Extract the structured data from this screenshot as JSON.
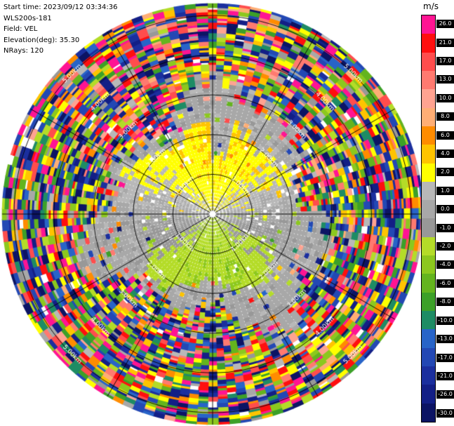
{
  "header": {
    "start_time": "Start time: 2023/09/12 03:34:36",
    "device": "WLS200s-181",
    "field": "Field: VEL",
    "elevation": "Elevation(deg): 35.30",
    "nrays": "NRays: 120"
  },
  "colorbar": {
    "unit": "m/s",
    "ticks": [
      26.0,
      21.0,
      17.0,
      13.0,
      10.0,
      8.0,
      6.0,
      4.0,
      2.0,
      1.0,
      0.0,
      -1.0,
      -2.0,
      -4.0,
      -6.0,
      -8.0,
      -10.0,
      -13.0,
      -17.0,
      -21.0,
      -26.0,
      -30.0
    ],
    "colors": [
      "#FF1493",
      "#FF0F0F",
      "#FF4D4D",
      "#FF7A70",
      "#FFA391",
      "#FFAE75",
      "#FF8C00",
      "#FFC400",
      "#FFFF00",
      "#B8B8B8",
      "#A8A8A8",
      "#989898",
      "#B4DC28",
      "#8CC81E",
      "#64B41E",
      "#3CA028",
      "#1E8C64",
      "#2864C8",
      "#2348B4",
      "#1B2F9E",
      "#131F86",
      "#0C1464"
    ]
  },
  "chart_data": {
    "type": "heatmap",
    "subtype": "doppler-lidar-ppi",
    "instrument": "WLS200s-181",
    "field": "VEL",
    "units": "m/s",
    "start_time": "2023/09/12 03:34:36",
    "elevation_deg": 35.3,
    "n_rays": 120,
    "max_range_km": 5.3,
    "gate_km": 0.053,
    "range_rings_km": [
      1,
      2,
      3,
      4,
      5
    ],
    "ring_labels": [
      "1.00km",
      "2.00km",
      "3.00km",
      "4.00km",
      "5.00km"
    ],
    "ring_label_azimuths_deg": [
      45,
      135,
      225,
      315
    ],
    "azimuth_spoke_step_deg": 30,
    "colormap": [
      {
        "value": 26.0,
        "color": "#FF1493"
      },
      {
        "value": 21.0,
        "color": "#FF0F0F"
      },
      {
        "value": 17.0,
        "color": "#FF4D4D"
      },
      {
        "value": 13.0,
        "color": "#FF7A70"
      },
      {
        "value": 10.0,
        "color": "#FFA391"
      },
      {
        "value": 8.0,
        "color": "#FFAE75"
      },
      {
        "value": 6.0,
        "color": "#FF8C00"
      },
      {
        "value": 4.0,
        "color": "#FFC400"
      },
      {
        "value": 2.0,
        "color": "#FFFF00"
      },
      {
        "value": 1.0,
        "color": "#B8B8B8"
      },
      {
        "value": 0.0,
        "color": "#A8A8A8"
      },
      {
        "value": -1.0,
        "color": "#989898"
      },
      {
        "value": -2.0,
        "color": "#B4DC28"
      },
      {
        "value": -4.0,
        "color": "#8CC81E"
      },
      {
        "value": -6.0,
        "color": "#64B41E"
      },
      {
        "value": -8.0,
        "color": "#3CA028"
      },
      {
        "value": -10.0,
        "color": "#1E8C64"
      },
      {
        "value": -13.0,
        "color": "#2864C8"
      },
      {
        "value": -17.0,
        "color": "#2348B4"
      },
      {
        "value": -21.0,
        "color": "#1B2F9E"
      },
      {
        "value": -26.0,
        "color": "#131F86"
      },
      {
        "value": -30.0,
        "color": "#0C1464"
      }
    ],
    "field_pattern": {
      "description": "Coherent radial-velocity dipole near the lidar: positive velocities (yellow/orange, about +2 to +5 m/s) in the northern half, negative velocities (yellow-green/green, about -2 to -5 m/s) in the southern half, near-zero grey wedges east and west; beyond roughly 2.5-3.5 km range the signal decorrelates into random multicoloured noise out to the 5.3 km data edge.",
      "coherent_amplitude_ms": 3.5,
      "coherent_radius_km": 2.2,
      "noise_start_km": 2.8
    }
  }
}
